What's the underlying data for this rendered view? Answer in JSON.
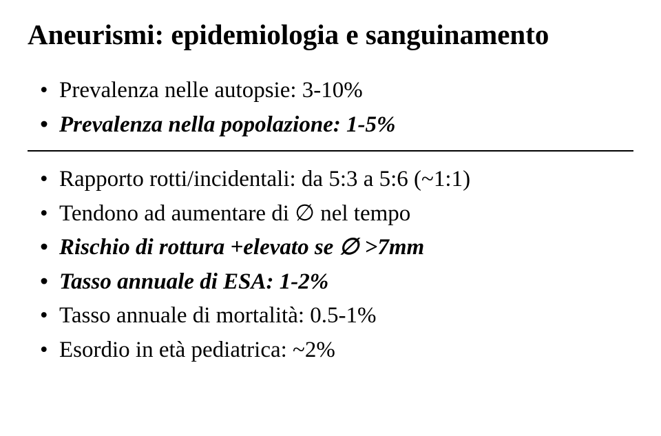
{
  "title": "Aneurismi: epidemiologia e sanguinamento",
  "section1": {
    "items": [
      {
        "text": "Prevalenza nelle autopsie: 3-10%",
        "style": "plain"
      },
      {
        "text": "Prevalenza nella popolazione: 1-5%",
        "style": "bold-italic"
      }
    ]
  },
  "section2": {
    "items": [
      {
        "text": "Rapporto rotti/incidentali: da 5:3 a 5:6 (~1:1)",
        "style": "plain"
      },
      {
        "text": "Tendono ad aumentare di ∅ nel tempo",
        "style": "plain"
      },
      {
        "text": "Rischio di rottura +elevato se ∅ >7mm",
        "style": "bold-italic"
      },
      {
        "text": "Tasso annuale di ESA: 1-2%",
        "style": "bold-italic"
      },
      {
        "text": "Tasso annuale di mortalità: 0.5-1%",
        "style": "plain"
      }
    ]
  },
  "section3": {
    "items": [
      {
        "text": "Esordio in età pediatrica: ~2%",
        "style": "plain"
      }
    ]
  }
}
